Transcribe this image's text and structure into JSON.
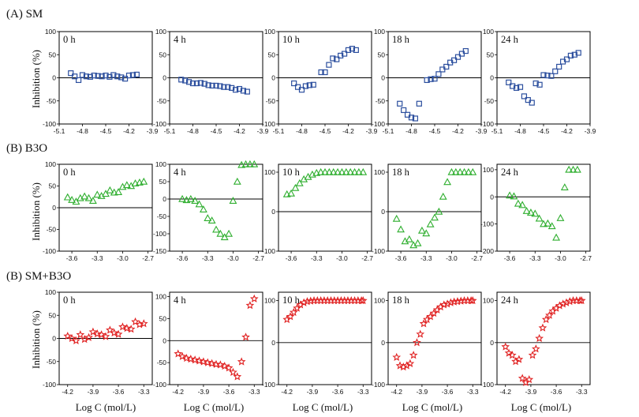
{
  "figure": {
    "row_titles": [
      "(A) SM",
      "(B) B3O",
      "(B) SM+B3O"
    ],
    "ylabel": "Inhibition (%)",
    "xlabel": "Log C (mol/L)"
  },
  "chart_data": [
    {
      "type": "scatter",
      "row": 0,
      "col": 0,
      "title": "0 h",
      "marker": "square",
      "color": "#2c4f9e",
      "xlim": [
        -5.1,
        -3.9
      ],
      "ylim": [
        -100,
        100
      ],
      "xticks": [
        -5.1,
        -4.8,
        -4.5,
        -4.2,
        -3.9
      ],
      "xtick_labels": [
        "-5.1",
        "-4.8",
        "-4.5",
        "-4.2",
        "-3.9"
      ],
      "yticks": [
        -100,
        -50,
        0,
        50,
        100
      ],
      "ytick_labels": [
        "-100",
        "-50",
        "0",
        "50",
        "100"
      ],
      "x": [
        -4.95,
        -4.9,
        -4.85,
        -4.8,
        -4.75,
        -4.7,
        -4.65,
        -4.6,
        -4.55,
        -4.5,
        -4.45,
        -4.4,
        -4.35,
        -4.3,
        -4.25,
        -4.2,
        -4.15,
        -4.1
      ],
      "y": [
        10,
        3,
        -5,
        6,
        3,
        2,
        5,
        4,
        3,
        5,
        2,
        6,
        3,
        1,
        -2,
        5,
        6,
        7
      ]
    },
    {
      "type": "scatter",
      "row": 0,
      "col": 1,
      "title": "4 h",
      "marker": "square",
      "color": "#2c4f9e",
      "xlim": [
        -5.1,
        -3.9
      ],
      "ylim": [
        -100,
        100
      ],
      "xticks": [
        -5.1,
        -4.8,
        -4.5,
        -4.2,
        -3.9
      ],
      "xtick_labels": [
        "-5.1",
        "-4.8",
        "-4.5",
        "-4.2",
        "-3.9"
      ],
      "yticks": [
        -100,
        -50,
        0,
        50,
        100
      ],
      "ytick_labels": [
        "-100",
        "-50",
        "0",
        "50",
        "100"
      ],
      "x": [
        -4.95,
        -4.9,
        -4.85,
        -4.8,
        -4.75,
        -4.7,
        -4.65,
        -4.6,
        -4.55,
        -4.5,
        -4.45,
        -4.4,
        -4.35,
        -4.3,
        -4.25,
        -4.2,
        -4.15,
        -4.1
      ],
      "y": [
        -4,
        -6,
        -9,
        -12,
        -12,
        -11,
        -13,
        -16,
        -17,
        -17,
        -18,
        -20,
        -20,
        -22,
        -26,
        -24,
        -28,
        -30
      ]
    },
    {
      "type": "scatter",
      "row": 0,
      "col": 2,
      "title": "10 h",
      "marker": "square",
      "color": "#2c4f9e",
      "xlim": [
        -5.1,
        -3.9
      ],
      "ylim": [
        -100,
        100
      ],
      "xticks": [
        -5.1,
        -4.8,
        -4.5,
        -4.2,
        -3.9
      ],
      "xtick_labels": [
        "-5.1",
        "-4.8",
        "-4.5",
        "-4.2",
        "-3.9"
      ],
      "yticks": [
        -100,
        -50,
        0,
        50,
        100
      ],
      "ytick_labels": [
        "-100",
        "-50",
        "0",
        "50",
        "100"
      ],
      "x": [
        -4.9,
        -4.85,
        -4.8,
        -4.75,
        -4.7,
        -4.65,
        -4.55,
        -4.5,
        -4.45,
        -4.4,
        -4.35,
        -4.3,
        -4.25,
        -4.2,
        -4.15,
        -4.1
      ],
      "y": [
        -12,
        -20,
        -26,
        -18,
        -16,
        -15,
        12,
        12,
        28,
        42,
        40,
        48,
        52,
        60,
        63,
        60
      ]
    },
    {
      "type": "scatter",
      "row": 0,
      "col": 3,
      "title": "18 h",
      "marker": "square",
      "color": "#2c4f9e",
      "xlim": [
        -5.1,
        -3.9
      ],
      "ylim": [
        -100,
        100
      ],
      "xticks": [
        -5.1,
        -4.8,
        -4.5,
        -4.2,
        -3.9
      ],
      "xtick_labels": [
        "-5.1",
        "-4.8",
        "-4.5",
        "-4.2",
        "-3.9"
      ],
      "yticks": [
        -100,
        -50,
        0,
        50,
        100
      ],
      "ytick_labels": [
        "-100",
        "-50",
        "0",
        "50",
        "100"
      ],
      "x": [
        -4.95,
        -4.9,
        -4.85,
        -4.8,
        -4.75,
        -4.7,
        -4.6,
        -4.55,
        -4.5,
        -4.45,
        -4.4,
        -4.35,
        -4.3,
        -4.25,
        -4.2,
        -4.15,
        -4.1
      ],
      "y": [
        -56,
        -70,
        -80,
        -86,
        -88,
        -56,
        -5,
        -3,
        -2,
        8,
        18,
        24,
        33,
        38,
        45,
        52,
        58
      ]
    },
    {
      "type": "scatter",
      "row": 0,
      "col": 4,
      "title": "24 h",
      "marker": "square",
      "color": "#2c4f9e",
      "xlim": [
        -5.1,
        -3.9
      ],
      "ylim": [
        -100,
        100
      ],
      "xticks": [
        -5.1,
        -4.8,
        -4.5,
        -4.2,
        -3.9
      ],
      "xtick_labels": [
        "-5.1",
        "-4.8",
        "-4.5",
        "-4.2",
        "-3.9"
      ],
      "yticks": [
        -100,
        -50,
        0,
        50,
        100
      ],
      "ytick_labels": [
        "-100",
        "-50",
        "0",
        "50",
        "100"
      ],
      "x": [
        -4.95,
        -4.9,
        -4.85,
        -4.8,
        -4.75,
        -4.7,
        -4.65,
        -4.6,
        -4.55,
        -4.5,
        -4.45,
        -4.4,
        -4.35,
        -4.3,
        -4.25,
        -4.2,
        -4.15,
        -4.1,
        -4.05
      ],
      "y": [
        -10,
        -18,
        -22,
        -20,
        -40,
        -48,
        -54,
        -12,
        -15,
        6,
        5,
        4,
        14,
        24,
        35,
        40,
        48,
        50,
        54
      ]
    },
    {
      "type": "scatter",
      "row": 1,
      "col": 0,
      "title": "0 h",
      "marker": "triangle",
      "color": "#2eae2e",
      "xlim": [
        -3.75,
        -2.65
      ],
      "ylim": [
        -100,
        100
      ],
      "xticks": [
        -3.6,
        -3.3,
        -3.0,
        -2.7
      ],
      "xtick_labels": [
        "-3.6",
        "-3.3",
        "-3.0",
        "-2.7"
      ],
      "yticks": [
        -100,
        -50,
        0,
        50,
        100
      ],
      "ytick_labels": [
        "-100",
        "-50",
        "0",
        "50",
        "100"
      ],
      "x": [
        -3.65,
        -3.6,
        -3.55,
        -3.5,
        -3.45,
        -3.4,
        -3.35,
        -3.3,
        -3.25,
        -3.2,
        -3.15,
        -3.1,
        -3.05,
        -3.0,
        -2.95,
        -2.9,
        -2.85,
        -2.8,
        -2.75
      ],
      "y": [
        24,
        18,
        14,
        22,
        26,
        22,
        16,
        30,
        27,
        32,
        40,
        35,
        36,
        48,
        52,
        50,
        56,
        58,
        60
      ]
    },
    {
      "type": "scatter",
      "row": 1,
      "col": 1,
      "title": "4 h",
      "marker": "triangle",
      "color": "#2eae2e",
      "xlim": [
        -3.75,
        -2.65
      ],
      "ylim": [
        -150,
        100
      ],
      "xticks": [
        -3.6,
        -3.3,
        -3.0,
        -2.7
      ],
      "xtick_labels": [
        "-3.6",
        "-3.3",
        "-3.0",
        "-2.7"
      ],
      "yticks": [
        -150,
        -100,
        -50,
        0,
        50,
        100
      ],
      "ytick_labels": [
        "-150",
        "-100",
        "-50",
        "0",
        "50",
        "100"
      ],
      "x": [
        -3.6,
        -3.55,
        -3.5,
        -3.45,
        -3.4,
        -3.35,
        -3.3,
        -3.25,
        -3.2,
        -3.15,
        -3.1,
        -3.05,
        -3.0,
        -2.95,
        -2.9,
        -2.85,
        -2.8,
        -2.75
      ],
      "y": [
        0,
        -3,
        0,
        -5,
        -15,
        -30,
        -55,
        -62,
        -88,
        -100,
        -110,
        -100,
        -5,
        50,
        98,
        100,
        100,
        100
      ]
    },
    {
      "type": "scatter",
      "row": 1,
      "col": 2,
      "title": "10 h",
      "marker": "triangle",
      "color": "#2eae2e",
      "xlim": [
        -3.75,
        -2.65
      ],
      "ylim": [
        -100,
        120
      ],
      "xticks": [
        -3.6,
        -3.3,
        -3.0,
        -2.7
      ],
      "xtick_labels": [
        "-3.6",
        "-3.3",
        "-3.0",
        "-2.7"
      ],
      "yticks": [
        -100,
        0,
        100
      ],
      "ytick_labels": [
        "-100",
        "0",
        "100"
      ],
      "x": [
        -3.65,
        -3.6,
        -3.55,
        -3.5,
        -3.45,
        -3.4,
        -3.35,
        -3.3,
        -3.25,
        -3.2,
        -3.15,
        -3.1,
        -3.05,
        -3.0,
        -2.95,
        -2.9,
        -2.85,
        -2.8,
        -2.75
      ],
      "y": [
        44,
        46,
        60,
        72,
        82,
        88,
        94,
        98,
        100,
        100,
        100,
        100,
        100,
        100,
        100,
        100,
        100,
        100,
        100
      ]
    },
    {
      "type": "scatter",
      "row": 1,
      "col": 3,
      "title": "18 h",
      "marker": "triangle",
      "color": "#2eae2e",
      "xlim": [
        -3.75,
        -2.65
      ],
      "ylim": [
        -100,
        120
      ],
      "xticks": [
        -3.6,
        -3.3,
        -3.0,
        -2.7
      ],
      "xtick_labels": [
        "-3.6",
        "-3.3",
        "-3.0",
        "-2.7"
      ],
      "yticks": [
        -100,
        0,
        100
      ],
      "ytick_labels": [
        "-100",
        "0",
        "100"
      ],
      "x": [
        -3.65,
        -3.6,
        -3.55,
        -3.5,
        -3.45,
        -3.4,
        -3.35,
        -3.3,
        -3.25,
        -3.2,
        -3.15,
        -3.1,
        -3.05,
        -3.0,
        -2.95,
        -2.9,
        -2.85,
        -2.8,
        -2.75
      ],
      "y": [
        -18,
        -45,
        -75,
        -70,
        -85,
        -80,
        -48,
        -55,
        -32,
        -15,
        0,
        38,
        75,
        100,
        100,
        100,
        100,
        100,
        100
      ]
    },
    {
      "type": "scatter",
      "row": 1,
      "col": 4,
      "title": "24 h",
      "marker": "triangle",
      "color": "#2eae2e",
      "xlim": [
        -3.75,
        -2.65
      ],
      "ylim": [
        -200,
        120
      ],
      "xticks": [
        -3.6,
        -3.3,
        -3.0,
        -2.7
      ],
      "xtick_labels": [
        "-3.6",
        "-3.3",
        "-3.0",
        "-2.7"
      ],
      "yticks": [
        -200,
        -100,
        0,
        100
      ],
      "ytick_labels": [
        "-200",
        "-100",
        "0",
        "100"
      ],
      "x": [
        -3.6,
        -3.55,
        -3.5,
        -3.45,
        -3.4,
        -3.35,
        -3.3,
        -3.25,
        -3.2,
        -3.15,
        -3.1,
        -3.05,
        -3.0,
        -2.95,
        -2.9,
        -2.85,
        -2.8
      ],
      "y": [
        5,
        2,
        -25,
        -30,
        -52,
        -58,
        -62,
        -80,
        -100,
        -98,
        -108,
        -150,
        -78,
        35,
        100,
        100,
        100
      ]
    },
    {
      "type": "scatter",
      "row": 2,
      "col": 0,
      "title": "0 h",
      "marker": "star",
      "color": "#e02020",
      "xlim": [
        -4.3,
        -3.2
      ],
      "ylim": [
        -100,
        100
      ],
      "xticks": [
        -4.2,
        -3.9,
        -3.6,
        -3.3
      ],
      "xtick_labels": [
        "-4.2",
        "-3.9",
        "-3.6",
        "-3.3"
      ],
      "yticks": [
        -100,
        -50,
        0,
        50,
        100
      ],
      "ytick_labels": [
        "-100",
        "-50",
        "0",
        "50",
        "100"
      ],
      "x": [
        -4.2,
        -4.15,
        -4.1,
        -4.05,
        -4.0,
        -3.95,
        -3.9,
        -3.85,
        -3.8,
        -3.75,
        -3.7,
        -3.65,
        -3.6,
        -3.55,
        -3.5,
        -3.45,
        -3.4,
        -3.35,
        -3.3
      ],
      "y": [
        5,
        0,
        -5,
        8,
        -2,
        2,
        14,
        10,
        8,
        4,
        18,
        12,
        9,
        25,
        22,
        20,
        36,
        30,
        32
      ]
    },
    {
      "type": "scatter",
      "row": 2,
      "col": 1,
      "title": "4 h",
      "marker": "star",
      "color": "#e02020",
      "xlim": [
        -4.3,
        -3.2
      ],
      "ylim": [
        -100,
        110
      ],
      "xticks": [
        -4.2,
        -3.9,
        -3.6,
        -3.3
      ],
      "xtick_labels": [
        "-4.2",
        "-3.9",
        "-3.6",
        "-3.3"
      ],
      "yticks": [
        -100,
        -50,
        0,
        50,
        100
      ],
      "ytick_labels": [
        "-100",
        "-50",
        "0",
        "50",
        "100"
      ],
      "x": [
        -4.2,
        -4.15,
        -4.1,
        -4.05,
        -4.0,
        -3.95,
        -3.9,
        -3.85,
        -3.8,
        -3.75,
        -3.7,
        -3.65,
        -3.6,
        -3.55,
        -3.5,
        -3.45,
        -3.4,
        -3.35,
        -3.3
      ],
      "y": [
        -30,
        -36,
        -40,
        -42,
        -44,
        -46,
        -48,
        -50,
        -52,
        -54,
        -55,
        -58,
        -62,
        -72,
        -82,
        -48,
        8,
        80,
        95
      ]
    },
    {
      "type": "scatter",
      "row": 2,
      "col": 2,
      "title": "10 h",
      "marker": "star",
      "color": "#e02020",
      "xlim": [
        -4.3,
        -3.2
      ],
      "ylim": [
        -100,
        120
      ],
      "xticks": [
        -4.2,
        -3.9,
        -3.6,
        -3.3
      ],
      "xtick_labels": [
        "-4.2",
        "-3.9",
        "-3.6",
        "-3.3"
      ],
      "yticks": [
        -100,
        0,
        100
      ],
      "ytick_labels": [
        "-100",
        "0",
        "100"
      ],
      "x": [
        -4.2,
        -4.16,
        -4.12,
        -4.08,
        -4.04,
        -4.0,
        -3.96,
        -3.92,
        -3.88,
        -3.84,
        -3.8,
        -3.76,
        -3.72,
        -3.68,
        -3.64,
        -3.6,
        -3.56,
        -3.52,
        -3.48,
        -3.44,
        -3.4,
        -3.36,
        -3.32,
        -3.3
      ],
      "y": [
        55,
        62,
        72,
        82,
        90,
        95,
        98,
        99,
        100,
        100,
        100,
        100,
        100,
        100,
        100,
        100,
        100,
        100,
        100,
        100,
        100,
        100,
        100,
        100
      ]
    },
    {
      "type": "scatter",
      "row": 2,
      "col": 3,
      "title": "18 h",
      "marker": "star",
      "color": "#e02020",
      "xlim": [
        -4.3,
        -3.2
      ],
      "ylim": [
        -100,
        120
      ],
      "xticks": [
        -4.2,
        -3.9,
        -3.6,
        -3.3
      ],
      "xtick_labels": [
        "-4.2",
        "-3.9",
        "-3.6",
        "-3.3"
      ],
      "yticks": [
        -100,
        0,
        100
      ],
      "ytick_labels": [
        "-100",
        "0",
        "100"
      ],
      "x": [
        -4.2,
        -4.16,
        -4.12,
        -4.08,
        -4.04,
        -4.0,
        -3.96,
        -3.92,
        -3.88,
        -3.84,
        -3.8,
        -3.76,
        -3.72,
        -3.68,
        -3.64,
        -3.6,
        -3.56,
        -3.52,
        -3.48,
        -3.44,
        -3.4,
        -3.36,
        -3.32,
        -3.3
      ],
      "y": [
        -35,
        -55,
        -58,
        -55,
        -50,
        -30,
        0,
        20,
        45,
        55,
        62,
        70,
        78,
        85,
        90,
        92,
        95,
        97,
        98,
        99,
        100,
        100,
        100,
        100
      ]
    },
    {
      "type": "scatter",
      "row": 2,
      "col": 4,
      "title": "24 h",
      "marker": "star",
      "color": "#e02020",
      "xlim": [
        -4.3,
        -3.2
      ],
      "ylim": [
        -100,
        120
      ],
      "xticks": [
        -4.2,
        -3.9,
        -3.6,
        -3.3
      ],
      "xtick_labels": [
        "-4.2",
        "-3.9",
        "-3.6",
        "-3.3"
      ],
      "yticks": [
        -100,
        0,
        100
      ],
      "ytick_labels": [
        "-100",
        "0",
        "100"
      ],
      "x": [
        -4.2,
        -4.16,
        -4.12,
        -4.08,
        -4.04,
        -4.0,
        -3.96,
        -3.92,
        -3.88,
        -3.84,
        -3.8,
        -3.76,
        -3.72,
        -3.68,
        -3.64,
        -3.6,
        -3.56,
        -3.52,
        -3.48,
        -3.44,
        -3.4,
        -3.36,
        -3.32,
        -3.3
      ],
      "y": [
        -10,
        -25,
        -30,
        -45,
        -40,
        -85,
        -95,
        -88,
        -30,
        -15,
        10,
        35,
        55,
        65,
        75,
        82,
        88,
        92,
        95,
        98,
        100,
        100,
        100,
        100
      ]
    }
  ]
}
